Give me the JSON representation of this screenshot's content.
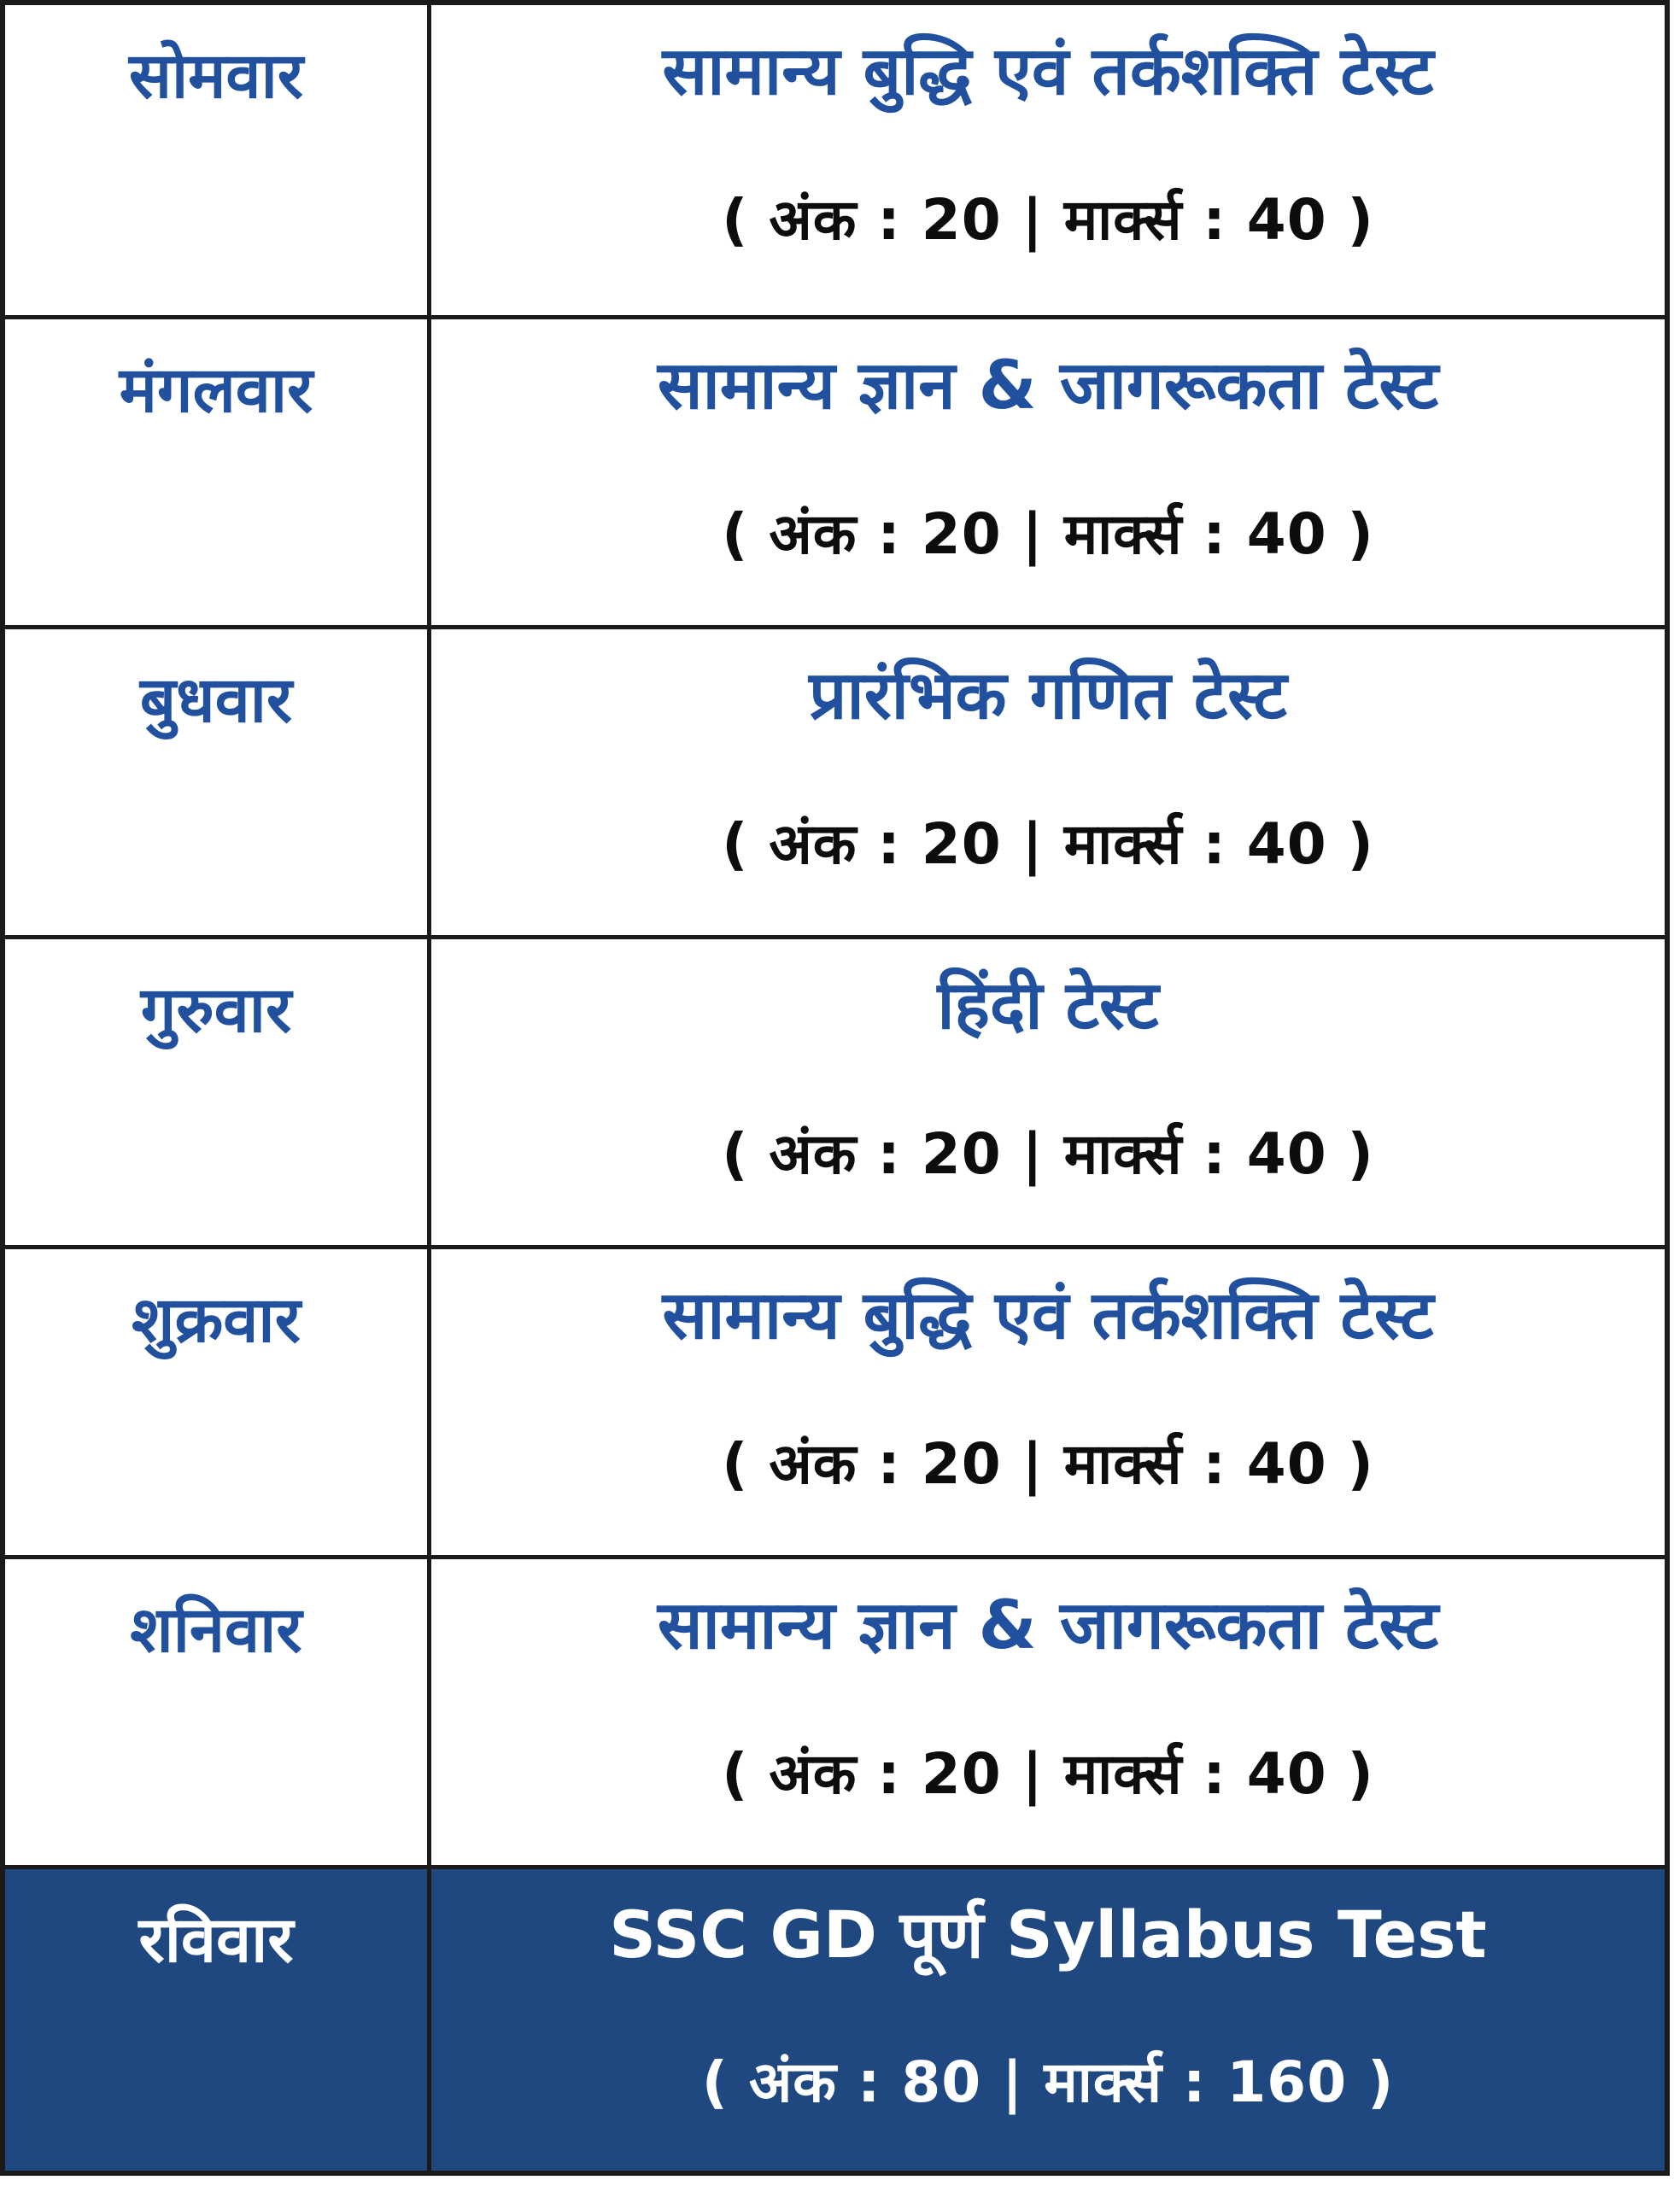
{
  "schedule": {
    "rows": [
      {
        "day": "सोमवार",
        "test": "सामान्य बुद्धि एवं तर्कशक्ति टेस्ट",
        "marks": "( अंक : 20 | मार्क्स : 40 )",
        "highlight": false
      },
      {
        "day": "मंगलवार",
        "test": "सामान्य ज्ञान & जागरूकता टेस्ट",
        "marks": "( अंक : 20 | मार्क्स : 40 )",
        "highlight": false
      },
      {
        "day": "बुधवार",
        "test": "प्रारंभिक गणित टेस्ट",
        "marks": "( अंक : 20 | मार्क्स : 40 )",
        "highlight": false
      },
      {
        "day": "गुरुवार",
        "test": "हिंदी टेस्ट",
        "marks": "( अंक : 20 | मार्क्स : 40 )",
        "highlight": false
      },
      {
        "day": "शुक्रवार",
        "test": "सामान्य बुद्धि एवं तर्कशक्ति टेस्ट",
        "marks": "( अंक : 20 | मार्क्स : 40 )",
        "highlight": false
      },
      {
        "day": "शनिवार",
        "test": "सामान्य ज्ञान & जागरूकता टेस्ट",
        "marks": "( अंक : 20 | मार्क्स : 40 )",
        "highlight": false
      },
      {
        "day": "रविवार",
        "test": "SSC GD पूर्ण Syllabus Test",
        "marks": "( अंक : 80 | मार्क्स : 160 )",
        "highlight": true
      }
    ],
    "colors": {
      "text_blue": "#21519e",
      "marks_black": "#0d0d0d",
      "highlight_background": "#204880",
      "highlight_text": "#ffffff",
      "border": "#1a1a1a",
      "background": "#ffffff"
    }
  }
}
